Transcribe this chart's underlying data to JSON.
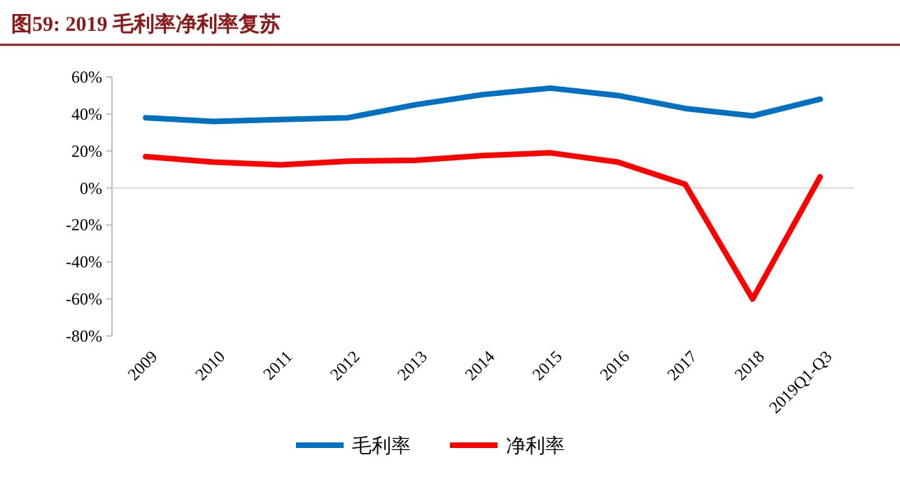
{
  "chart_data": {
    "type": "line",
    "title": "图59:    2019 毛利率净利率复苏",
    "categories": [
      "2009",
      "2010",
      "2011",
      "2012",
      "2013",
      "2014",
      "2015",
      "2016",
      "2017",
      "2018",
      "2019Q1-Q3"
    ],
    "series": [
      {
        "name": "毛利率",
        "color": "#0070c0",
        "values": [
          38,
          36,
          37,
          38,
          45,
          50.5,
          54,
          50,
          43,
          39,
          48
        ]
      },
      {
        "name": "净利率",
        "color": "#ff0000",
        "values": [
          17,
          14,
          12.5,
          14.5,
          15,
          17.5,
          19,
          14,
          2,
          -60,
          6
        ]
      }
    ],
    "ylim": [
      -80,
      60
    ],
    "yticks": [
      {
        "value": -80,
        "label": "-80%"
      },
      {
        "value": -60,
        "label": "-60%"
      },
      {
        "value": -40,
        "label": "-40%"
      },
      {
        "value": -20,
        "label": "-20%"
      },
      {
        "value": 0,
        "label": "0%"
      },
      {
        "value": 20,
        "label": "20%"
      },
      {
        "value": 40,
        "label": "40%"
      },
      {
        "value": 60,
        "label": "60%"
      }
    ],
    "ref_lines": [
      {
        "axis": "y",
        "value": 0,
        "color": "#d9d9d9"
      }
    ],
    "legend": "bottom",
    "grid": false,
    "marker": "none",
    "line_style": "solid"
  }
}
